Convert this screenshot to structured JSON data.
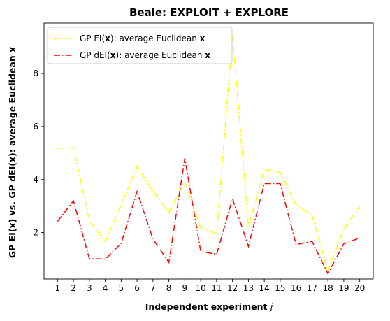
{
  "chart_data": {
    "type": "line",
    "title": "Beale: EXPLOIT + EXPLORE",
    "xlabel": "Independent experiment",
    "xlabel_var": "j",
    "ylabel": "GP EI(x) vs. GP dEI(x): average Euclidean x",
    "x": [
      1,
      2,
      3,
      4,
      5,
      6,
      7,
      8,
      9,
      10,
      11,
      12,
      13,
      14,
      15,
      16,
      17,
      18,
      19,
      20
    ],
    "xlim": [
      0.15,
      20.85
    ],
    "ylim": [
      0.25,
      9.9
    ],
    "yticks": [
      2,
      4,
      6,
      8
    ],
    "grid": false,
    "legend_position": "top-left",
    "series": [
      {
        "name": "GP EI(x): average Euclidean x",
        "legend_prefix": "GP EI(",
        "legend_bold": "x",
        "legend_mid": "): average Euclidean ",
        "legend_bold2": "x",
        "color": "#ffff00",
        "values": [
          5.18,
          5.2,
          2.45,
          1.65,
          3.05,
          4.5,
          3.55,
          2.78,
          3.92,
          2.18,
          1.95,
          9.45,
          2.22,
          4.38,
          4.27,
          3.05,
          2.65,
          0.55,
          2.15,
          3.0
        ]
      },
      {
        "name": "GP dEI(x): average Euclidean x",
        "legend_prefix": "GP dEI(",
        "legend_bold": "x",
        "legend_mid": "): average Euclidean ",
        "legend_bold2": "x",
        "color": "#ff0000",
        "values": [
          2.42,
          3.2,
          1.02,
          1.0,
          1.6,
          3.55,
          1.75,
          0.88,
          4.8,
          1.3,
          1.18,
          3.28,
          1.48,
          3.85,
          3.85,
          1.55,
          1.67,
          0.45,
          1.58,
          1.8
        ]
      }
    ]
  }
}
